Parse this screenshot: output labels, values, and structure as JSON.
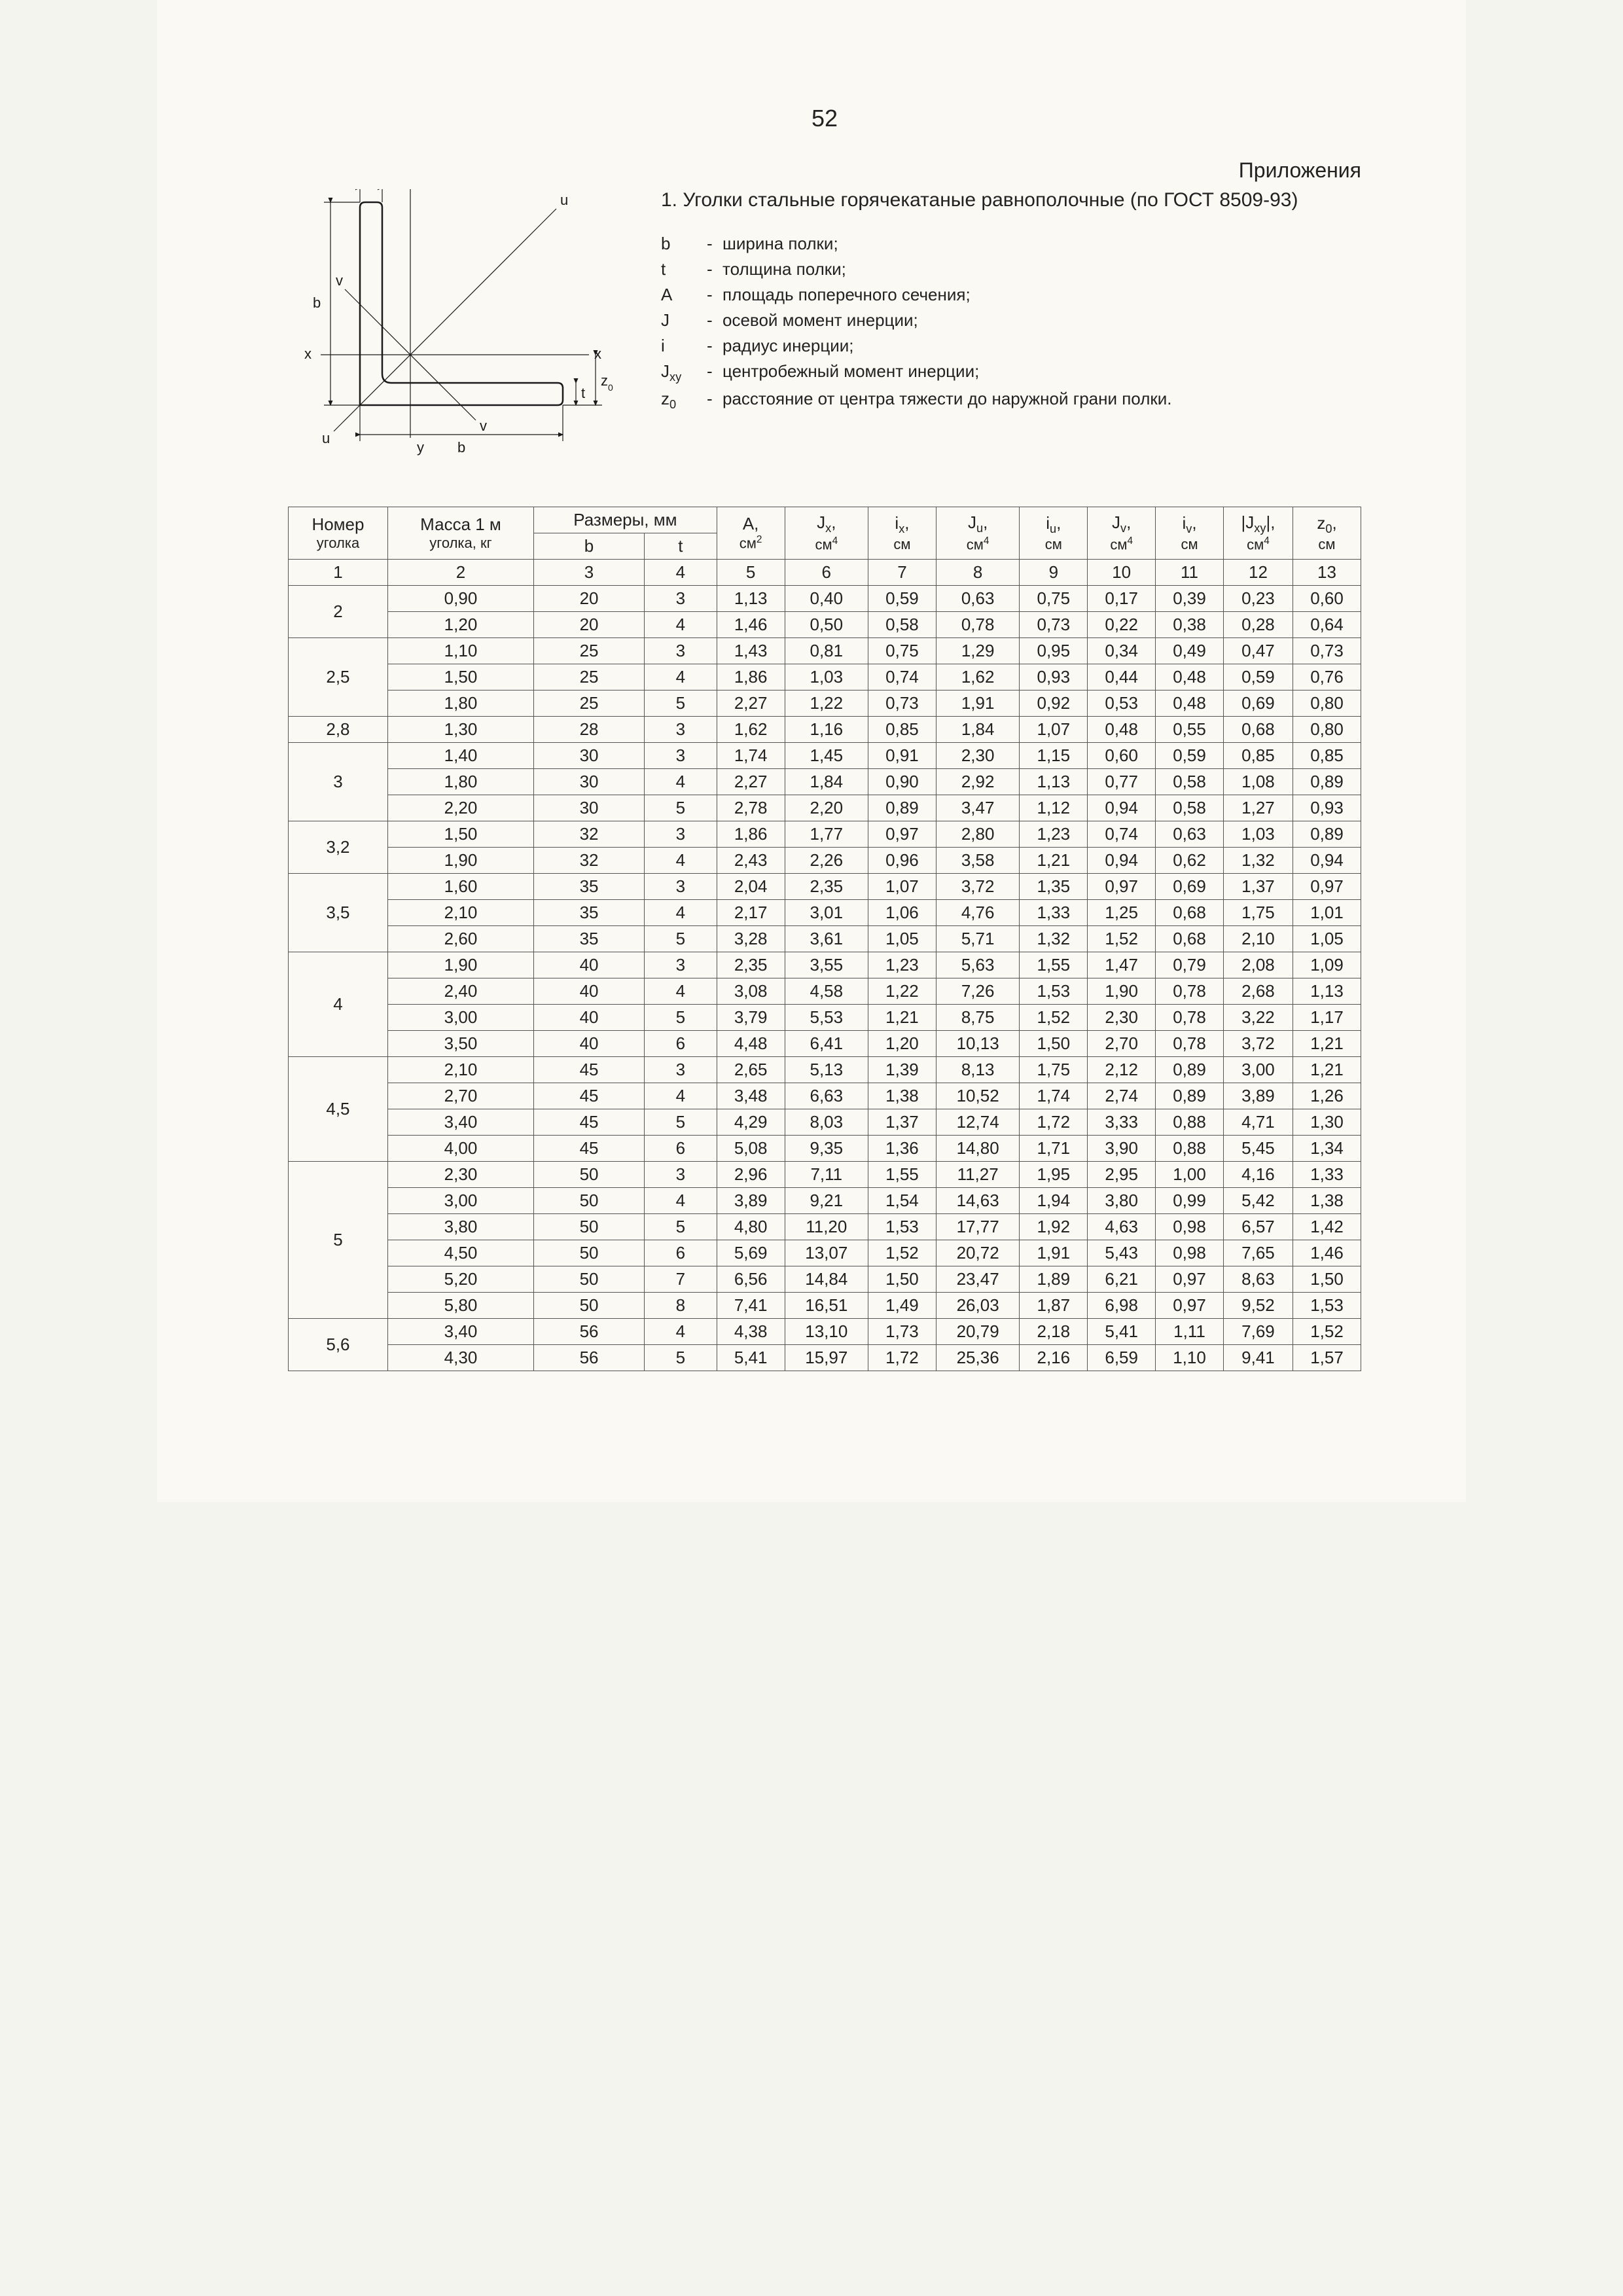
{
  "page_number": "52",
  "appendix": "Приложения",
  "section_title": "1. Уголки стальные горячекатаные равнополочные (по ГОСТ 8509-93)",
  "legend": [
    {
      "sym": "b",
      "desc": "ширина полки;"
    },
    {
      "sym": "t",
      "desc": "толщина полки;"
    },
    {
      "sym": "A",
      "desc": "площадь поперечного сечения;"
    },
    {
      "sym": "J",
      "desc": "осевой момент инерции;"
    },
    {
      "sym": "i",
      "desc": "радиус инерции;"
    },
    {
      "sym": "Jxy",
      "sym_html": "J<sub>xy</sub>",
      "desc": "центробежный момент инерции;"
    },
    {
      "sym": "z0",
      "sym_html": "z<sub>0</sub>",
      "desc": "расстояние от центра тяжести до наружной грани полки."
    }
  ],
  "diagram_labels": {
    "t": "t",
    "y": "y",
    "u": "u",
    "v": "v",
    "x": "x",
    "b": "b",
    "z0": "z0"
  },
  "diagram": {
    "stroke": "#1a1a1a",
    "stroke_width": 2.5,
    "font_family": "Arial",
    "font_size": 22
  },
  "table": {
    "columns": [
      {
        "line1": "Номер",
        "line2": "уголка"
      },
      {
        "line1": "Масса 1 м",
        "line2": "уголка, кг"
      },
      {
        "group": "Размеры, мм",
        "sub": [
          "b",
          "t"
        ]
      },
      {
        "line1_html": "A,",
        "line2_html": "см<sup>2</sup>"
      },
      {
        "line1_html": "J<sub>x</sub>,",
        "line2_html": "см<sup>4</sup>"
      },
      {
        "line1_html": "i<sub>x</sub>,",
        "line2_html": "см"
      },
      {
        "line1_html": "J<sub>u</sub>,",
        "line2_html": "см<sup>4</sup>"
      },
      {
        "line1_html": "i<sub>u</sub>,",
        "line2_html": "см"
      },
      {
        "line1_html": "J<sub>v</sub>,",
        "line2_html": "см<sup>4</sup>"
      },
      {
        "line1_html": "i<sub>v</sub>,",
        "line2_html": "см"
      },
      {
        "line1_html": "|J<sub>xy</sub>|,",
        "line2_html": "см<sup>4</sup>"
      },
      {
        "line1_html": "z<sub>0</sub>,",
        "line2_html": "см"
      }
    ],
    "index_row": [
      "1",
      "2",
      "3",
      "4",
      "5",
      "6",
      "7",
      "8",
      "9",
      "10",
      "11",
      "12",
      "13"
    ],
    "groups": [
      {
        "no": "2",
        "rows": [
          [
            "0,90",
            "20",
            "3",
            "1,13",
            "0,40",
            "0,59",
            "0,63",
            "0,75",
            "0,17",
            "0,39",
            "0,23",
            "0,60"
          ],
          [
            "1,20",
            "20",
            "4",
            "1,46",
            "0,50",
            "0,58",
            "0,78",
            "0,73",
            "0,22",
            "0,38",
            "0,28",
            "0,64"
          ]
        ]
      },
      {
        "no": "2,5",
        "rows": [
          [
            "1,10",
            "25",
            "3",
            "1,43",
            "0,81",
            "0,75",
            "1,29",
            "0,95",
            "0,34",
            "0,49",
            "0,47",
            "0,73"
          ],
          [
            "1,50",
            "25",
            "4",
            "1,86",
            "1,03",
            "0,74",
            "1,62",
            "0,93",
            "0,44",
            "0,48",
            "0,59",
            "0,76"
          ],
          [
            "1,80",
            "25",
            "5",
            "2,27",
            "1,22",
            "0,73",
            "1,91",
            "0,92",
            "0,53",
            "0,48",
            "0,69",
            "0,80"
          ]
        ]
      },
      {
        "no": "2,8",
        "rows": [
          [
            "1,30",
            "28",
            "3",
            "1,62",
            "1,16",
            "0,85",
            "1,84",
            "1,07",
            "0,48",
            "0,55",
            "0,68",
            "0,80"
          ]
        ]
      },
      {
        "no": "3",
        "rows": [
          [
            "1,40",
            "30",
            "3",
            "1,74",
            "1,45",
            "0,91",
            "2,30",
            "1,15",
            "0,60",
            "0,59",
            "0,85",
            "0,85"
          ],
          [
            "1,80",
            "30",
            "4",
            "2,27",
            "1,84",
            "0,90",
            "2,92",
            "1,13",
            "0,77",
            "0,58",
            "1,08",
            "0,89"
          ],
          [
            "2,20",
            "30",
            "5",
            "2,78",
            "2,20",
            "0,89",
            "3,47",
            "1,12",
            "0,94",
            "0,58",
            "1,27",
            "0,93"
          ]
        ]
      },
      {
        "no": "3,2",
        "rows": [
          [
            "1,50",
            "32",
            "3",
            "1,86",
            "1,77",
            "0,97",
            "2,80",
            "1,23",
            "0,74",
            "0,63",
            "1,03",
            "0,89"
          ],
          [
            "1,90",
            "32",
            "4",
            "2,43",
            "2,26",
            "0,96",
            "3,58",
            "1,21",
            "0,94",
            "0,62",
            "1,32",
            "0,94"
          ]
        ]
      },
      {
        "no": "3,5",
        "rows": [
          [
            "1,60",
            "35",
            "3",
            "2,04",
            "2,35",
            "1,07",
            "3,72",
            "1,35",
            "0,97",
            "0,69",
            "1,37",
            "0,97"
          ],
          [
            "2,10",
            "35",
            "4",
            "2,17",
            "3,01",
            "1,06",
            "4,76",
            "1,33",
            "1,25",
            "0,68",
            "1,75",
            "1,01"
          ],
          [
            "2,60",
            "35",
            "5",
            "3,28",
            "3,61",
            "1,05",
            "5,71",
            "1,32",
            "1,52",
            "0,68",
            "2,10",
            "1,05"
          ]
        ]
      },
      {
        "no": "4",
        "rows": [
          [
            "1,90",
            "40",
            "3",
            "2,35",
            "3,55",
            "1,23",
            "5,63",
            "1,55",
            "1,47",
            "0,79",
            "2,08",
            "1,09"
          ],
          [
            "2,40",
            "40",
            "4",
            "3,08",
            "4,58",
            "1,22",
            "7,26",
            "1,53",
            "1,90",
            "0,78",
            "2,68",
            "1,13"
          ],
          [
            "3,00",
            "40",
            "5",
            "3,79",
            "5,53",
            "1,21",
            "8,75",
            "1,52",
            "2,30",
            "0,78",
            "3,22",
            "1,17"
          ],
          [
            "3,50",
            "40",
            "6",
            "4,48",
            "6,41",
            "1,20",
            "10,13",
            "1,50",
            "2,70",
            "0,78",
            "3,72",
            "1,21"
          ]
        ]
      },
      {
        "no": "4,5",
        "rows": [
          [
            "2,10",
            "45",
            "3",
            "2,65",
            "5,13",
            "1,39",
            "8,13",
            "1,75",
            "2,12",
            "0,89",
            "3,00",
            "1,21"
          ],
          [
            "2,70",
            "45",
            "4",
            "3,48",
            "6,63",
            "1,38",
            "10,52",
            "1,74",
            "2,74",
            "0,89",
            "3,89",
            "1,26"
          ],
          [
            "3,40",
            "45",
            "5",
            "4,29",
            "8,03",
            "1,37",
            "12,74",
            "1,72",
            "3,33",
            "0,88",
            "4,71",
            "1,30"
          ],
          [
            "4,00",
            "45",
            "6",
            "5,08",
            "9,35",
            "1,36",
            "14,80",
            "1,71",
            "3,90",
            "0,88",
            "5,45",
            "1,34"
          ]
        ]
      },
      {
        "no": "5",
        "rows": [
          [
            "2,30",
            "50",
            "3",
            "2,96",
            "7,11",
            "1,55",
            "11,27",
            "1,95",
            "2,95",
            "1,00",
            "4,16",
            "1,33"
          ],
          [
            "3,00",
            "50",
            "4",
            "3,89",
            "9,21",
            "1,54",
            "14,63",
            "1,94",
            "3,80",
            "0,99",
            "5,42",
            "1,38"
          ],
          [
            "3,80",
            "50",
            "5",
            "4,80",
            "11,20",
            "1,53",
            "17,77",
            "1,92",
            "4,63",
            "0,98",
            "6,57",
            "1,42"
          ],
          [
            "4,50",
            "50",
            "6",
            "5,69",
            "13,07",
            "1,52",
            "20,72",
            "1,91",
            "5,43",
            "0,98",
            "7,65",
            "1,46"
          ],
          [
            "5,20",
            "50",
            "7",
            "6,56",
            "14,84",
            "1,50",
            "23,47",
            "1,89",
            "6,21",
            "0,97",
            "8,63",
            "1,50"
          ],
          [
            "5,80",
            "50",
            "8",
            "7,41",
            "16,51",
            "1,49",
            "26,03",
            "1,87",
            "6,98",
            "0,97",
            "9,52",
            "1,53"
          ]
        ]
      },
      {
        "no": "5,6",
        "rows": [
          [
            "3,40",
            "56",
            "4",
            "4,38",
            "13,10",
            "1,73",
            "20,79",
            "2,18",
            "5,41",
            "1,11",
            "7,69",
            "1,52"
          ],
          [
            "4,30",
            "56",
            "5",
            "5,41",
            "15,97",
            "1,72",
            "25,36",
            "2,16",
            "6,59",
            "1,10",
            "9,41",
            "1,57"
          ]
        ]
      }
    ]
  },
  "style": {
    "background": "#faf9f4",
    "border_color": "#555555",
    "text_color": "#222222"
  }
}
